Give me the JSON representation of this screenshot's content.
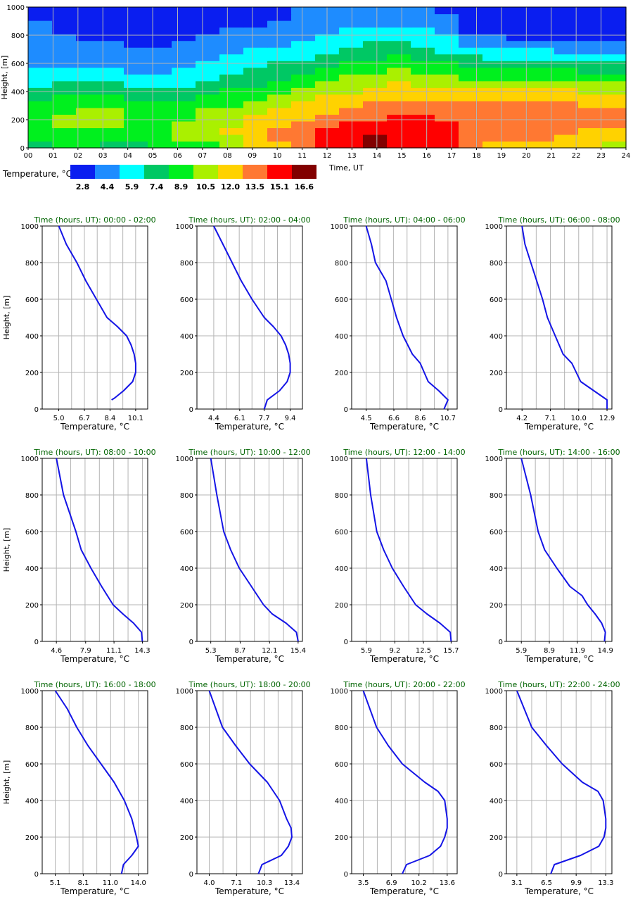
{
  "colors": {
    "scale": [
      "#0a1ef0",
      "#1e8cff",
      "#00ffff",
      "#00c864",
      "#00f01e",
      "#aaf000",
      "#ffd200",
      "#ff7832",
      "#ff0000",
      "#820000"
    ],
    "curve": "#1414e6",
    "title": "#006400",
    "grid": "#b4b4b4"
  },
  "heatmap": {
    "ylabel": "Height, [m]",
    "xlabel": "Time, UT",
    "yticks": [
      "0",
      "200",
      "400",
      "600",
      "800",
      "1000"
    ],
    "xticks": [
      "00",
      "01",
      "02",
      "03",
      "04",
      "05",
      "06",
      "07",
      "08",
      "09",
      "10",
      "11",
      "12",
      "13",
      "14",
      "15",
      "16",
      "17",
      "18",
      "19",
      "20",
      "21",
      "22",
      "23",
      "24"
    ]
  },
  "legend": {
    "label": "Temperature, °C",
    "values": [
      "2.8",
      "4.4",
      "5.9",
      "7.4",
      "8.9",
      "10.5",
      "12.0",
      "13.5",
      "15.1",
      "16.6"
    ]
  },
  "chart_data": [
    {
      "type": "heatmap",
      "title": "",
      "xlabel": "Time, UT",
      "ylabel": "Height, [m]",
      "xlim": [
        0,
        24
      ],
      "ylim": [
        0,
        1000
      ],
      "color_levels": [
        2.8,
        4.4,
        5.9,
        7.4,
        8.9,
        10.5,
        12.0,
        13.5,
        15.1,
        16.6
      ],
      "x": [
        0,
        1,
        2,
        3,
        4,
        5,
        6,
        7,
        8,
        9,
        10,
        11,
        12,
        13,
        14,
        15,
        16,
        17,
        18,
        19,
        20,
        21,
        22,
        23,
        24
      ],
      "y": [
        0,
        50,
        100,
        150,
        200,
        250,
        300,
        350,
        400,
        450,
        500,
        550,
        600,
        650,
        700,
        750,
        800,
        850,
        900,
        950,
        1000
      ],
      "z": [
        [
          8.1,
          8.2,
          8.2,
          8.0,
          7.8,
          8.3,
          9.2,
          9.6,
          10.4,
          11.4,
          12.4,
          13.2,
          14.4,
          15.2,
          15.9,
          15.0,
          14.8,
          14.7,
          13.3,
          12.7,
          12.5,
          12.4,
          11.8,
          11.4,
          11.0
        ],
        [
          8.8,
          9.2,
          9.1,
          8.9,
          8.8,
          8.9,
          9.8,
          10.4,
          11.1,
          11.9,
          12.9,
          13.6,
          14.7,
          15.6,
          16.2,
          15.5,
          15.1,
          14.9,
          14.0,
          13.6,
          13.3,
          13.0,
          12.4,
          12.0,
          11.6
        ],
        [
          9.2,
          9.6,
          9.6,
          9.5,
          9.3,
          9.2,
          10.0,
          10.7,
          11.4,
          12.1,
          12.9,
          13.5,
          14.5,
          15.3,
          15.8,
          15.5,
          15.2,
          14.8,
          14.2,
          13.9,
          13.7,
          13.4,
          13.0,
          12.7,
          12.4
        ],
        [
          9.4,
          9.9,
          10.0,
          9.9,
          9.6,
          9.3,
          9.9,
          10.6,
          11.2,
          11.8,
          12.6,
          13.1,
          13.9,
          14.5,
          14.9,
          15.0,
          14.8,
          14.4,
          14.0,
          13.8,
          13.8,
          13.8,
          13.5,
          13.2,
          13.0
        ],
        [
          9.3,
          9.9,
          10.1,
          10.0,
          9.6,
          9.2,
          9.7,
          10.3,
          10.8,
          11.3,
          12.0,
          12.5,
          13.3,
          13.8,
          14.2,
          14.4,
          14.3,
          14.0,
          13.6,
          13.6,
          13.8,
          13.9,
          13.5,
          13.2,
          13.0
        ],
        [
          9.0,
          9.7,
          9.9,
          9.8,
          9.3,
          8.8,
          9.3,
          9.8,
          10.2,
          10.8,
          11.4,
          11.9,
          12.6,
          13.2,
          13.5,
          13.8,
          13.8,
          13.6,
          13.2,
          13.3,
          13.7,
          13.9,
          13.4,
          13.0,
          12.8
        ],
        [
          8.5,
          9.3,
          9.5,
          9.4,
          8.8,
          8.3,
          8.8,
          9.2,
          9.6,
          10.2,
          10.8,
          11.3,
          12.0,
          12.6,
          12.9,
          13.3,
          13.3,
          13.1,
          12.8,
          12.9,
          13.2,
          13.4,
          12.9,
          12.6,
          12.4
        ],
        [
          8.0,
          8.7,
          8.8,
          8.7,
          8.1,
          7.6,
          8.1,
          8.5,
          9.0,
          9.5,
          10.1,
          10.6,
          11.3,
          11.9,
          12.3,
          12.7,
          12.7,
          12.5,
          12.2,
          12.2,
          12.4,
          12.5,
          12.2,
          11.9,
          11.7
        ],
        [
          7.3,
          7.9,
          7.9,
          7.8,
          7.2,
          6.8,
          7.3,
          7.8,
          8.3,
          8.8,
          9.4,
          9.9,
          10.6,
          11.2,
          11.6,
          12.0,
          12.0,
          11.8,
          11.5,
          11.4,
          11.6,
          11.6,
          11.3,
          11.1,
          10.9
        ],
        [
          6.6,
          7.1,
          7.1,
          6.9,
          6.4,
          6.1,
          6.6,
          7.1,
          7.6,
          8.1,
          8.7,
          9.2,
          9.9,
          10.5,
          10.9,
          11.3,
          11.2,
          11.0,
          10.6,
          10.5,
          10.6,
          10.6,
          10.3,
          10.2,
          10.0
        ],
        [
          6.0,
          6.4,
          6.3,
          6.1,
          5.7,
          5.5,
          6.0,
          6.5,
          7.0,
          7.5,
          8.0,
          8.6,
          9.2,
          9.8,
          10.2,
          10.6,
          10.4,
          10.1,
          9.6,
          9.5,
          9.5,
          9.5,
          9.3,
          9.2,
          9.0
        ],
        [
          5.5,
          5.7,
          5.6,
          5.4,
          5.1,
          5.0,
          5.4,
          5.9,
          6.4,
          6.8,
          7.3,
          7.9,
          8.5,
          9.1,
          9.5,
          9.8,
          9.6,
          9.2,
          8.6,
          8.4,
          8.4,
          8.4,
          8.2,
          8.1,
          7.9
        ],
        [
          5.1,
          5.1,
          5.0,
          4.8,
          4.6,
          4.6,
          4.9,
          5.4,
          5.8,
          6.2,
          6.7,
          7.3,
          7.8,
          8.4,
          8.8,
          9.1,
          8.8,
          8.3,
          7.6,
          7.4,
          7.3,
          7.3,
          7.1,
          7.0,
          6.8
        ],
        [
          4.8,
          4.7,
          4.5,
          4.4,
          4.3,
          4.2,
          4.5,
          4.9,
          5.3,
          5.7,
          6.1,
          6.6,
          7.2,
          7.7,
          8.1,
          8.3,
          8.0,
          7.4,
          6.7,
          6.4,
          6.3,
          6.3,
          6.1,
          5.9,
          5.7
        ],
        [
          4.5,
          4.4,
          4.2,
          4.0,
          3.9,
          3.9,
          4.1,
          4.5,
          4.8,
          5.2,
          5.6,
          6.0,
          6.5,
          7.0,
          7.4,
          7.6,
          7.3,
          6.6,
          5.8,
          5.4,
          5.3,
          5.3,
          5.1,
          4.9,
          4.7
        ],
        [
          4.3,
          4.1,
          3.9,
          3.7,
          3.6,
          3.6,
          3.8,
          4.1,
          4.4,
          4.7,
          5.1,
          5.5,
          5.9,
          6.4,
          6.7,
          6.9,
          6.6,
          5.9,
          5.0,
          4.6,
          4.4,
          4.4,
          4.2,
          4.0,
          3.8
        ],
        [
          4.1,
          3.8,
          3.6,
          3.4,
          3.3,
          3.4,
          3.5,
          3.8,
          4.0,
          4.3,
          4.6,
          5.0,
          5.4,
          5.8,
          6.1,
          6.2,
          5.9,
          5.2,
          4.3,
          3.8,
          3.6,
          3.6,
          3.4,
          3.2,
          3.1
        ],
        [
          3.9,
          3.6,
          3.3,
          3.1,
          3.1,
          3.2,
          3.3,
          3.5,
          3.7,
          3.9,
          4.2,
          4.6,
          4.9,
          5.3,
          5.6,
          5.6,
          5.3,
          4.6,
          3.6,
          3.1,
          2.9,
          2.9,
          2.7,
          2.6,
          2.5
        ],
        [
          3.7,
          3.4,
          3.1,
          2.9,
          2.9,
          3.0,
          3.1,
          3.2,
          3.4,
          3.6,
          3.9,
          4.2,
          4.5,
          4.8,
          5.1,
          5.1,
          4.8,
          4.1,
          3.1,
          2.6,
          2.3,
          2.3,
          2.2,
          2.1,
          2.0
        ],
        [
          3.5,
          3.2,
          2.9,
          2.7,
          2.7,
          2.8,
          2.9,
          3.0,
          3.2,
          3.3,
          3.6,
          3.9,
          4.2,
          4.5,
          4.7,
          4.7,
          4.4,
          3.7,
          2.7,
          2.2,
          1.9,
          1.9,
          1.8,
          1.7,
          1.6
        ],
        [
          3.3,
          3.0,
          2.7,
          2.6,
          2.6,
          2.7,
          2.8,
          2.9,
          3.0,
          3.1,
          3.4,
          3.7,
          4.0,
          4.3,
          4.5,
          4.4,
          4.1,
          3.4,
          2.4,
          1.9,
          1.6,
          1.6,
          1.5,
          1.4,
          1.3
        ]
      ]
    },
    {
      "type": "line",
      "title": "Time (hours, UT): 00:00 - 02:00",
      "xlabel": "Temperature, °C",
      "ylabel": "Height, [m]",
      "ylim": [
        0,
        1000
      ],
      "xlim": [
        3.9,
        10.9
      ],
      "xticks": [
        "5.0",
        "6.7",
        "8.4",
        "10.1"
      ],
      "x": [
        8.5,
        8.7,
        9.3,
        9.9,
        10.1,
        10.1,
        10.0,
        9.8,
        9.5,
        8.9,
        8.2,
        7.5,
        6.8,
        6.2,
        5.5,
        5.0
      ],
      "y": [
        50,
        60,
        100,
        150,
        200,
        250,
        300,
        350,
        400,
        450,
        500,
        600,
        700,
        800,
        900,
        1000
      ]
    },
    {
      "type": "line",
      "title": "Time (hours, UT): 02:00 - 04:00",
      "xlabel": "Temperature, °C",
      "ylabel": "Height, [m]",
      "ylim": [
        0,
        1000
      ],
      "xlim": [
        3.3,
        10.2
      ],
      "xticks": [
        "4.4",
        "6.1",
        "7.7",
        "9.4"
      ],
      "x": [
        7.7,
        7.9,
        8.7,
        9.2,
        9.4,
        9.4,
        9.3,
        9.1,
        8.8,
        8.3,
        7.7,
        6.9,
        6.2,
        5.6,
        5.0,
        4.4
      ],
      "y": [
        0,
        50,
        100,
        150,
        200,
        250,
        300,
        350,
        400,
        450,
        500,
        600,
        700,
        800,
        900,
        1000
      ]
    },
    {
      "type": "line",
      "title": "Time (hours, UT): 04:00 - 06:00",
      "xlabel": "Temperature, °C",
      "ylabel": "Height, [m]",
      "ylim": [
        0,
        1000
      ],
      "xlim": [
        3.4,
        11.4
      ],
      "xticks": [
        "4.5",
        "6.6",
        "8.6",
        "10.7"
      ],
      "x": [
        10.4,
        10.7,
        10.0,
        9.2,
        8.6,
        8.0,
        7.3,
        6.8,
        6.4,
        6.0,
        5.6,
        5.2,
        4.9,
        4.5
      ],
      "y": [
        0,
        50,
        100,
        150,
        250,
        300,
        400,
        500,
        600,
        700,
        750,
        800,
        900,
        1000
      ]
    },
    {
      "type": "line",
      "title": "Time (hours, UT): 06:00 - 08:00",
      "xlabel": "Temperature, °C",
      "ylabel": "Height, [m]",
      "ylim": [
        0,
        1000
      ],
      "xlim": [
        2.6,
        13.4
      ],
      "xticks": [
        "4.2",
        "7.1",
        "10.0",
        "12.9"
      ],
      "x": [
        12.9,
        12.9,
        10.2,
        9.3,
        8.4,
        7.6,
        6.8,
        6.3,
        5.7,
        5.1,
        4.5,
        4.2
      ],
      "y": [
        0,
        50,
        150,
        250,
        300,
        400,
        500,
        600,
        700,
        800,
        900,
        1000
      ]
    },
    {
      "type": "line",
      "title": "Time (hours, UT): 08:00 - 10:00",
      "xlabel": "Temperature, °C",
      "ylabel": "Height, [m]",
      "ylim": [
        0,
        1000
      ],
      "xlim": [
        3.0,
        14.9
      ],
      "xticks": [
        "4.6",
        "7.9",
        "11.1",
        "14.3"
      ],
      "x": [
        14.3,
        14.2,
        13.3,
        12.1,
        11.0,
        9.7,
        8.5,
        7.4,
        6.8,
        6.1,
        5.4,
        4.6
      ],
      "y": [
        0,
        50,
        100,
        150,
        200,
        300,
        400,
        500,
        600,
        700,
        800,
        1000
      ]
    },
    {
      "type": "line",
      "title": "Time (hours, UT): 10:00 - 12:00",
      "xlabel": "Temperature, °C",
      "ylabel": "Height, [m]",
      "ylim": [
        0,
        1000
      ],
      "xlim": [
        3.7,
        15.9
      ],
      "xticks": [
        "5.3",
        "8.7",
        "12.1",
        "15.4"
      ],
      "x": [
        15.4,
        15.2,
        14.0,
        12.4,
        11.4,
        10.0,
        8.6,
        7.6,
        6.8,
        6.0,
        5.3
      ],
      "y": [
        0,
        50,
        100,
        150,
        200,
        300,
        400,
        500,
        600,
        800,
        1000
      ]
    },
    {
      "type": "line",
      "title": "Time (hours, UT): 12:00 - 14:00",
      "xlabel": "Temperature, °C",
      "ylabel": "Height, [m]",
      "ylim": [
        0,
        1000
      ],
      "xlim": [
        4.2,
        16.4
      ],
      "xticks": [
        "5.9",
        "9.2",
        "12.5",
        "15.7"
      ],
      "x": [
        15.7,
        15.6,
        14.4,
        12.9,
        11.6,
        10.2,
        8.9,
        7.9,
        7.1,
        6.4,
        5.9
      ],
      "y": [
        0,
        50,
        100,
        150,
        200,
        300,
        400,
        500,
        600,
        800,
        1000
      ]
    },
    {
      "type": "line",
      "title": "Time (hours, UT): 14:00 - 16:00",
      "xlabel": "Temperature, °C",
      "ylabel": "Height, [m]",
      "ylim": [
        0,
        1000
      ],
      "xlim": [
        4.3,
        15.6
      ],
      "xticks": [
        "5.9",
        "8.9",
        "11.9",
        "14.9"
      ],
      "x": [
        14.8,
        14.9,
        14.5,
        13.8,
        13.0,
        12.4,
        11.1,
        9.7,
        8.4,
        7.7,
        6.9,
        5.9
      ],
      "y": [
        0,
        50,
        100,
        150,
        200,
        250,
        300,
        400,
        500,
        600,
        800,
        1000
      ]
    },
    {
      "type": "line",
      "title": "Time (hours, UT): 16:00 - 18:00",
      "xlabel": "Temperature, °C",
      "ylabel": "Height, [m]",
      "ylim": [
        0,
        1000
      ],
      "xlim": [
        3.7,
        15.0
      ],
      "xticks": [
        "5.1",
        "8.1",
        "11.0",
        "14.0"
      ],
      "x": [
        12.2,
        12.4,
        13.3,
        14.0,
        13.8,
        13.3,
        12.5,
        11.4,
        10.0,
        8.6,
        7.4,
        6.4,
        5.1
      ],
      "y": [
        0,
        50,
        100,
        150,
        200,
        300,
        400,
        500,
        600,
        700,
        800,
        900,
        1000
      ]
    },
    {
      "type": "line",
      "title": "Time (hours, UT): 18:00 - 20:00",
      "xlabel": "Temperature, °C",
      "ylabel": "Height, [m]",
      "ylim": [
        0,
        1000
      ],
      "xlim": [
        2.6,
        14.6
      ],
      "xticks": [
        "4.0",
        "7.1",
        "10.3",
        "13.4"
      ],
      "x": [
        9.6,
        10.0,
        12.2,
        13.0,
        13.4,
        13.3,
        12.8,
        12.0,
        10.6,
        8.6,
        7.0,
        5.5,
        4.0
      ],
      "y": [
        0,
        50,
        100,
        150,
        200,
        250,
        300,
        400,
        500,
        600,
        700,
        800,
        1000
      ]
    },
    {
      "type": "line",
      "title": "Time (hours, UT): 20:00 - 22:00",
      "xlabel": "Temperature, °C",
      "ylabel": "Height, [m]",
      "ylim": [
        0,
        1000
      ],
      "xlim": [
        2.1,
        14.8
      ],
      "xticks": [
        "3.5",
        "6.9",
        "10.2",
        "13.6"
      ],
      "x": [
        8.2,
        8.7,
        11.5,
        12.8,
        13.3,
        13.6,
        13.6,
        13.3,
        12.5,
        10.9,
        8.2,
        6.5,
        5.1,
        3.5
      ],
      "y": [
        0,
        50,
        100,
        150,
        200,
        250,
        300,
        400,
        450,
        500,
        600,
        700,
        800,
        1000
      ]
    },
    {
      "type": "line",
      "title": "Time (hours, UT): 22:00 - 24:00",
      "xlabel": "Temperature, °C",
      "ylabel": "Height, [m]",
      "ylim": [
        0,
        1000
      ],
      "xlim": [
        1.9,
        14.0
      ],
      "xticks": [
        "3.1",
        "6.5",
        "9.9",
        "13.3"
      ],
      "x": [
        7.0,
        7.4,
        10.4,
        12.5,
        13.1,
        13.3,
        13.3,
        13.0,
        12.4,
        10.6,
        8.3,
        6.5,
        4.8,
        3.1
      ],
      "y": [
        0,
        50,
        100,
        150,
        200,
        250,
        300,
        400,
        450,
        500,
        600,
        700,
        800,
        1000
      ]
    }
  ]
}
